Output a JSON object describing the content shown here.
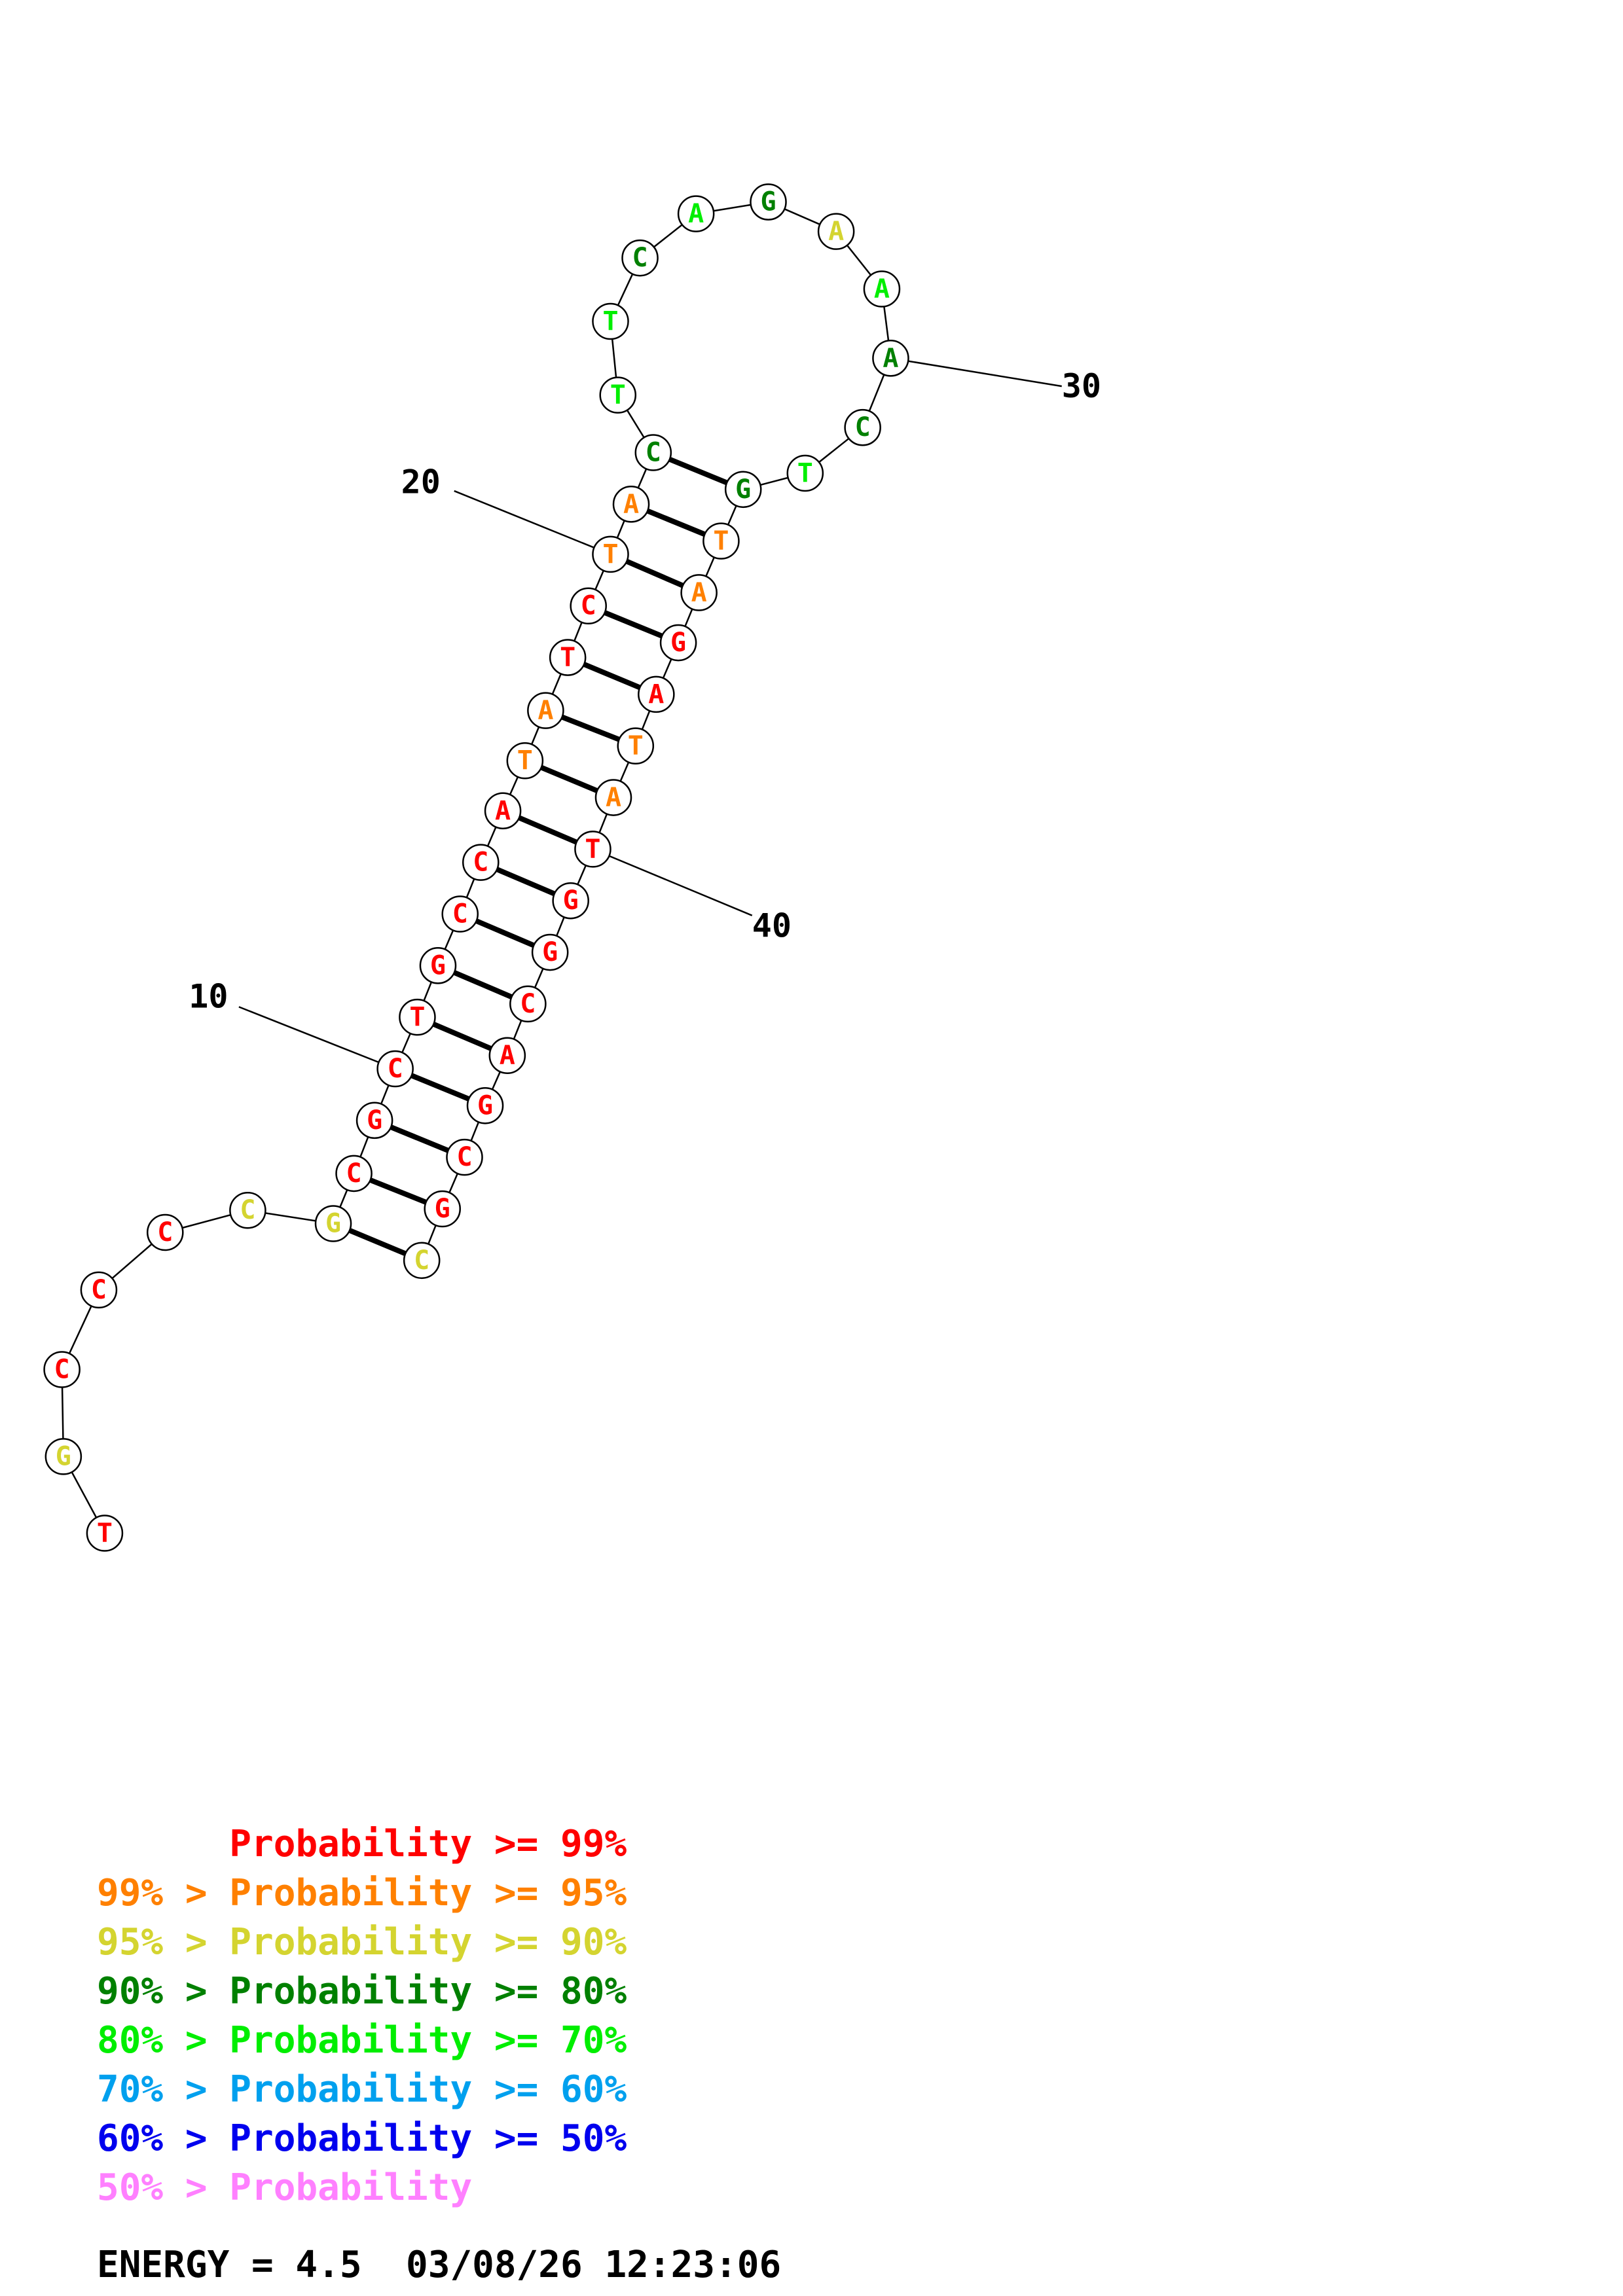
{
  "colors": {
    "p99": "#ff0000",
    "p95": "#ff8000",
    "p90": "#d4d430",
    "p80": "#008000",
    "p70": "#00ee00",
    "p60": "#00a0ee",
    "p50": "#0000ee",
    "p0": "#ff80ff"
  },
  "structure": {
    "nucleotides": [
      {
        "n": 1,
        "base": "T",
        "color": "p99"
      },
      {
        "n": 2,
        "base": "G",
        "color": "p90"
      },
      {
        "n": 3,
        "base": "C",
        "color": "p99"
      },
      {
        "n": 4,
        "base": "C",
        "color": "p99"
      },
      {
        "n": 5,
        "base": "C",
        "color": "p99"
      },
      {
        "n": 6,
        "base": "C",
        "color": "p90"
      },
      {
        "n": 7,
        "base": "G",
        "color": "p90"
      },
      {
        "n": 8,
        "base": "C",
        "color": "p99"
      },
      {
        "n": 9,
        "base": "G",
        "color": "p99"
      },
      {
        "n": 10,
        "base": "C",
        "color": "p99"
      },
      {
        "n": 11,
        "base": "T",
        "color": "p99"
      },
      {
        "n": 12,
        "base": "G",
        "color": "p99"
      },
      {
        "n": 13,
        "base": "C",
        "color": "p99"
      },
      {
        "n": 14,
        "base": "C",
        "color": "p99"
      },
      {
        "n": 15,
        "base": "A",
        "color": "p99"
      },
      {
        "n": 16,
        "base": "T",
        "color": "p95"
      },
      {
        "n": 17,
        "base": "A",
        "color": "p95"
      },
      {
        "n": 18,
        "base": "T",
        "color": "p99"
      },
      {
        "n": 19,
        "base": "C",
        "color": "p99"
      },
      {
        "n": 20,
        "base": "T",
        "color": "p95"
      },
      {
        "n": 21,
        "base": "A",
        "color": "p95"
      },
      {
        "n": 22,
        "base": "C",
        "color": "p80"
      },
      {
        "n": 23,
        "base": "T",
        "color": "p70"
      },
      {
        "n": 24,
        "base": "T",
        "color": "p70"
      },
      {
        "n": 25,
        "base": "C",
        "color": "p80"
      },
      {
        "n": 26,
        "base": "A",
        "color": "p70"
      },
      {
        "n": 27,
        "base": "G",
        "color": "p80"
      },
      {
        "n": 28,
        "base": "A",
        "color": "p90"
      },
      {
        "n": 29,
        "base": "A",
        "color": "p70"
      },
      {
        "n": 30,
        "base": "A",
        "color": "p80"
      },
      {
        "n": 31,
        "base": "C",
        "color": "p80"
      },
      {
        "n": 32,
        "base": "T",
        "color": "p70"
      },
      {
        "n": 33,
        "base": "G",
        "color": "p80"
      },
      {
        "n": 34,
        "base": "T",
        "color": "p95"
      },
      {
        "n": 35,
        "base": "A",
        "color": "p95"
      },
      {
        "n": 36,
        "base": "G",
        "color": "p99"
      },
      {
        "n": 37,
        "base": "A",
        "color": "p99"
      },
      {
        "n": 38,
        "base": "T",
        "color": "p95"
      },
      {
        "n": 39,
        "base": "A",
        "color": "p95"
      },
      {
        "n": 40,
        "base": "T",
        "color": "p99"
      },
      {
        "n": 41,
        "base": "G",
        "color": "p99"
      },
      {
        "n": 42,
        "base": "G",
        "color": "p99"
      },
      {
        "n": 43,
        "base": "C",
        "color": "p99"
      },
      {
        "n": 44,
        "base": "A",
        "color": "p99"
      },
      {
        "n": 45,
        "base": "G",
        "color": "p99"
      },
      {
        "n": 46,
        "base": "C",
        "color": "p99"
      },
      {
        "n": 47,
        "base": "G",
        "color": "p99"
      },
      {
        "n": 48,
        "base": "C",
        "color": "p90"
      }
    ],
    "pairs": [
      [
        7,
        48
      ],
      [
        8,
        47
      ],
      [
        9,
        46
      ],
      [
        10,
        45
      ],
      [
        11,
        44
      ],
      [
        12,
        43
      ],
      [
        13,
        42
      ],
      [
        14,
        41
      ],
      [
        15,
        40
      ],
      [
        16,
        39
      ],
      [
        17,
        38
      ],
      [
        18,
        37
      ],
      [
        19,
        36
      ],
      [
        20,
        35
      ],
      [
        21,
        34
      ],
      [
        22,
        33
      ]
    ],
    "position_labels": [
      {
        "text": "10",
        "n": 10
      },
      {
        "text": "20",
        "n": 20
      },
      {
        "text": "30",
        "n": 30
      },
      {
        "text": "40",
        "n": 40
      }
    ]
  },
  "legend": [
    {
      "prefix": "",
      "label": "Probability >= 99%",
      "prefix_color": "p99",
      "label_color": "p99"
    },
    {
      "prefix": "99% > ",
      "label": "Probability >= 95%",
      "prefix_color": "p95",
      "label_color": "p95"
    },
    {
      "prefix": "95% > ",
      "label": "Probability >= 90%",
      "prefix_color": "p90",
      "label_color": "p90"
    },
    {
      "prefix": "90% > ",
      "label": "Probability >= 80%",
      "prefix_color": "p80",
      "label_color": "p80"
    },
    {
      "prefix": "80% > ",
      "label": "Probability >= 70%",
      "prefix_color": "p70",
      "label_color": "p70"
    },
    {
      "prefix": "70% > ",
      "label": "Probability >= 60%",
      "prefix_color": "p60",
      "label_color": "p60"
    },
    {
      "prefix": "60% > ",
      "label": "Probability >= 50%",
      "prefix_color": "p50",
      "label_color": "p50"
    },
    {
      "prefix": "50% > ",
      "label": "Probability",
      "prefix_color": "p0",
      "label_color": "p0"
    }
  ],
  "footer": {
    "energy": "ENERGY = 4.5",
    "timestamp": "03/08/26 12:23:06"
  }
}
